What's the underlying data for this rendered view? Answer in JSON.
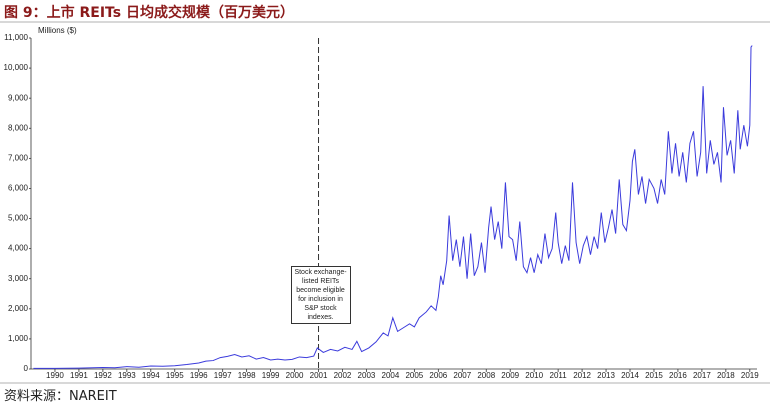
{
  "chart_data": {
    "type": "line",
    "title": "图 9：上市 REITs 日均成交规模（百万美元）",
    "ylabel": "Millions ($)",
    "source": "资料来源：NAREIT",
    "annotation": {
      "text": "Stock exchange-listed REITs become eligible for inclusion in S&P stock indexes.",
      "x": 2001
    },
    "color": "#3b3bdc",
    "x": [
      1989.1,
      1990,
      1991,
      1992,
      1992.5,
      1993,
      1993.5,
      1994,
      1994.5,
      1995,
      1995.5,
      1996,
      1996.3,
      1996.6,
      1996.9,
      1997.2,
      1997.5,
      1997.8,
      1998.1,
      1998.4,
      1998.7,
      1999,
      1999.3,
      1999.6,
      1999.9,
      2000.2,
      2000.5,
      2000.8,
      2000.95,
      2001.2,
      2001.5,
      2001.8,
      2002.1,
      2002.4,
      2002.6,
      2002.8,
      2003.1,
      2003.4,
      2003.7,
      2003.9,
      2004.1,
      2004.3,
      2004.5,
      2004.8,
      2005,
      2005.2,
      2005.5,
      2005.7,
      2005.9,
      2006,
      2006.1,
      2006.2,
      2006.35,
      2006.45,
      2006.6,
      2006.75,
      2006.9,
      2007.05,
      2007.2,
      2007.35,
      2007.5,
      2007.65,
      2007.8,
      2007.95,
      2008.1,
      2008.2,
      2008.35,
      2008.5,
      2008.65,
      2008.8,
      2008.95,
      2009.1,
      2009.25,
      2009.4,
      2009.55,
      2009.7,
      2009.85,
      2010,
      2010.15,
      2010.3,
      2010.45,
      2010.6,
      2010.75,
      2010.9,
      2011,
      2011.15,
      2011.3,
      2011.45,
      2011.6,
      2011.75,
      2011.9,
      2012.05,
      2012.2,
      2012.35,
      2012.5,
      2012.65,
      2012.8,
      2012.95,
      2013.1,
      2013.25,
      2013.4,
      2013.55,
      2013.7,
      2013.85,
      2014,
      2014.1,
      2014.2,
      2014.35,
      2014.5,
      2014.65,
      2014.8,
      2015,
      2015.15,
      2015.3,
      2015.45,
      2015.6,
      2015.75,
      2015.9,
      2016.05,
      2016.2,
      2016.35,
      2016.5,
      2016.65,
      2016.8,
      2016.95,
      2017.05,
      2017.2,
      2017.35,
      2017.5,
      2017.65,
      2017.8,
      2017.9,
      2018.05,
      2018.2,
      2018.35,
      2018.5,
      2018.6,
      2018.75,
      2018.9,
      2019,
      2019.05,
      2019.1
    ],
    "values": [
      20,
      20,
      30,
      50,
      40,
      80,
      60,
      100,
      90,
      110,
      150,
      200,
      260,
      280,
      380,
      420,
      480,
      400,
      440,
      330,
      380,
      300,
      330,
      300,
      320,
      400,
      380,
      430,
      700,
      550,
      650,
      600,
      720,
      650,
      920,
      580,
      700,
      900,
      1200,
      1100,
      1700,
      1250,
      1350,
      1500,
      1400,
      1700,
      1900,
      2100,
      1950,
      2400,
      3100,
      2800,
      3600,
      5100,
      3600,
      4300,
      3400,
      4400,
      3000,
      4500,
      3100,
      3400,
      4200,
      3200,
      4700,
      5400,
      4300,
      4900,
      4000,
      6200,
      4400,
      4300,
      3600,
      4900,
      3400,
      3200,
      3700,
      3200,
      3800,
      3500,
      4500,
      3700,
      4000,
      5200,
      4200,
      3500,
      4100,
      3600,
      6200,
      4200,
      3500,
      4100,
      4400,
      3800,
      4400,
      4000,
      5200,
      4200,
      4700,
      5300,
      4500,
      6300,
      4800,
      4600,
      5600,
      6900,
      7300,
      5800,
      6400,
      5500,
      6300,
      6000,
      5500,
      6300,
      5800,
      7900,
      6500,
      7500,
      6400,
      7200,
      6200,
      7500,
      7900,
      6400,
      7200,
      9400,
      6500,
      7600,
      6800,
      7200,
      6200,
      8700,
      7100,
      7600,
      6500,
      8600,
      7300,
      8100,
      7400,
      8100,
      10700,
      10750
    ],
    "xlim": [
      1989,
      2019.3
    ],
    "xticks": [
      1990,
      1991,
      1992,
      1993,
      1994,
      1995,
      1996,
      1997,
      1998,
      1999,
      2000,
      2001,
      2002,
      2003,
      2004,
      2005,
      2006,
      2007,
      2008,
      2009,
      2010,
      2011,
      2012,
      2013,
      2014,
      2015,
      2016,
      2017,
      2018,
      2019
    ],
    "ylim": [
      0,
      11000
    ],
    "yticks": [
      0,
      {
        "value": 1000,
        "label": "1,000"
      },
      {
        "value": 2000,
        "label": "2,000"
      },
      {
        "value": 3000,
        "label": "3,000"
      },
      {
        "value": 4000,
        "label": "4,000"
      },
      {
        "value": 5000,
        "label": "5,000"
      },
      {
        "value": 6000,
        "label": "6,000"
      },
      {
        "value": 7000,
        "label": "7,000"
      },
      {
        "value": 8000,
        "label": "8,000"
      },
      {
        "value": 9000,
        "label": "9,000"
      },
      {
        "value": 10000,
        "label": "10,000"
      },
      {
        "value": 11000,
        "label": "11,000"
      }
    ],
    "grid": false
  }
}
